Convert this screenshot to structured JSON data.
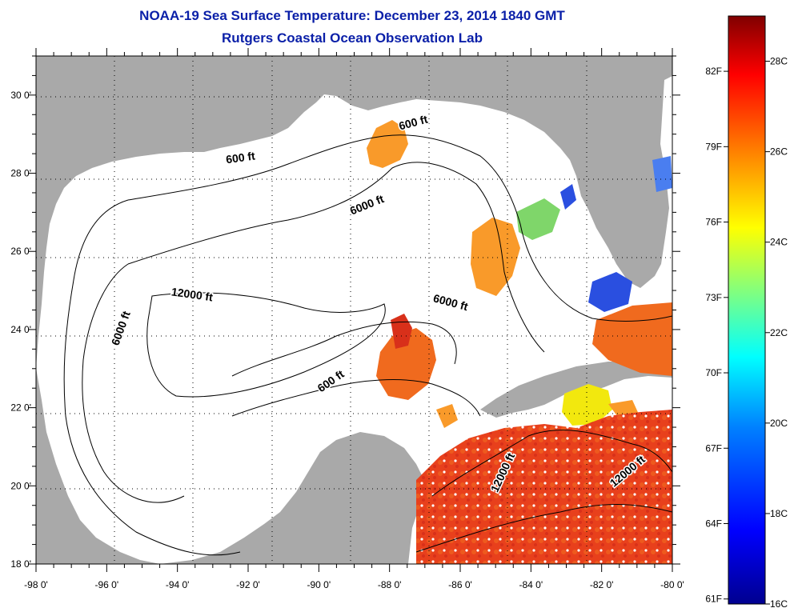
{
  "header": {
    "title": "NOAA-19 Sea Surface Temperature:  December 23, 2014 1840 GMT",
    "subtitle": "Rutgers Coastal Ocean Observation Lab"
  },
  "map": {
    "lon_range": [
      -98,
      -80
    ],
    "lat_range": [
      18,
      31
    ],
    "lon_ticks": [
      {
        "value": -98,
        "label": "-98 0'"
      },
      {
        "value": -96,
        "label": "-96 0'"
      },
      {
        "value": -94,
        "label": "-94 0'"
      },
      {
        "value": -92,
        "label": "-92 0'"
      },
      {
        "value": -90,
        "label": "-90 0'"
      },
      {
        "value": -88,
        "label": "-88 0'"
      },
      {
        "value": -86,
        "label": "-86 0'"
      },
      {
        "value": -84,
        "label": "-84 0'"
      },
      {
        "value": -82,
        "label": "-82 0'"
      },
      {
        "value": -80,
        "label": "-80 0'"
      }
    ],
    "lat_ticks": [
      {
        "value": 18,
        "label": "18 0'"
      },
      {
        "value": 20,
        "label": "20 0'"
      },
      {
        "value": 22,
        "label": "22 0'"
      },
      {
        "value": 24,
        "label": "24 0'"
      },
      {
        "value": 26,
        "label": "26 0'"
      },
      {
        "value": 28,
        "label": "28 0'"
      },
      {
        "value": 30,
        "label": "30 0'"
      }
    ],
    "contour_labels": [
      {
        "text": "600 ft",
        "lon": -92.2,
        "lat": 28.3,
        "angle": -8
      },
      {
        "text": "600 ft",
        "lon": -87.3,
        "lat": 29.2,
        "angle": -15
      },
      {
        "text": "6000 ft",
        "lon": -88.6,
        "lat": 27.1,
        "angle": -22
      },
      {
        "text": "12000 ft",
        "lon": -93.6,
        "lat": 24.8,
        "angle": 8
      },
      {
        "text": "6000 ft",
        "lon": -95.5,
        "lat": 24.0,
        "angle": -70
      },
      {
        "text": "6000 ft",
        "lon": -86.3,
        "lat": 24.6,
        "angle": 15
      },
      {
        "text": "600 ft",
        "lon": -89.6,
        "lat": 22.6,
        "angle": -35
      },
      {
        "text": "12000 ft",
        "lon": -84.7,
        "lat": 20.3,
        "angle": -65
      },
      {
        "text": "12000 ft",
        "lon": -81.2,
        "lat": 20.3,
        "angle": -40
      }
    ]
  },
  "colorbar": {
    "f_labels": [
      {
        "value": 82,
        "label": "82F"
      },
      {
        "value": 79,
        "label": "79F"
      },
      {
        "value": 76,
        "label": "76F"
      },
      {
        "value": 73,
        "label": "73F"
      },
      {
        "value": 70,
        "label": "70F"
      },
      {
        "value": 67,
        "label": "67F"
      },
      {
        "value": 64,
        "label": "64F"
      },
      {
        "value": 61,
        "label": "61F"
      }
    ],
    "c_labels": [
      {
        "value": 28,
        "label": "28C"
      },
      {
        "value": 26,
        "label": "26C"
      },
      {
        "value": 24,
        "label": "24C"
      },
      {
        "value": 22,
        "label": "22C"
      },
      {
        "value": 20,
        "label": "20C"
      },
      {
        "value": 18,
        "label": "18C"
      },
      {
        "value": 16,
        "label": "16C"
      }
    ],
    "c_min": 16,
    "c_max": 29,
    "colors": [
      "#00008f",
      "#0000ff",
      "#0080ff",
      "#00ffff",
      "#80ff80",
      "#ffff00",
      "#ff8000",
      "#ff0000",
      "#800000"
    ]
  },
  "colors": {
    "land": "#a9a9a9",
    "ocean": "#ffffff",
    "warm_1": "#e8401c",
    "warm_2": "#f06a1e",
    "warm_3": "#f99a2a",
    "yellow": "#f2e80e",
    "cool": "#2a4fe0",
    "green": "#7fd66a"
  }
}
